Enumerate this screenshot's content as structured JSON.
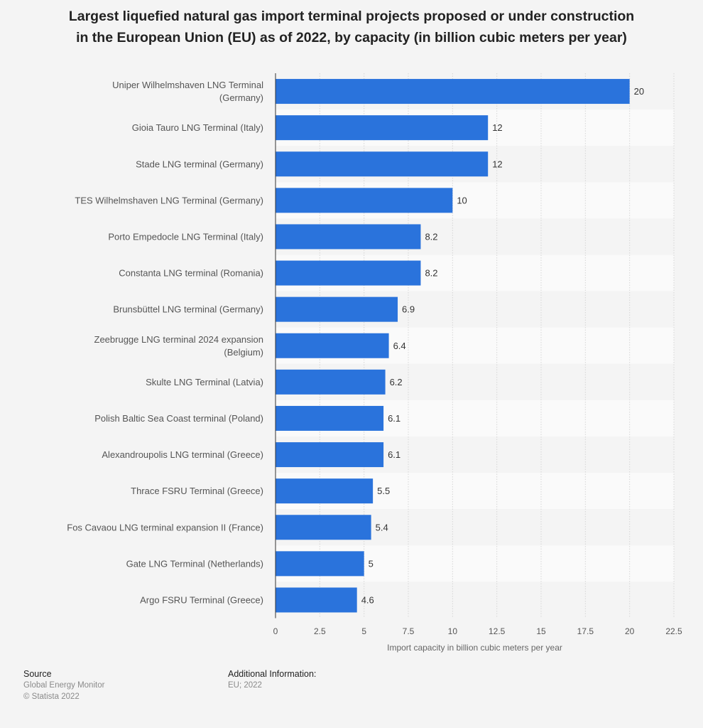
{
  "title": {
    "line1": "Largest liquefied natural gas import terminal projects proposed or under construction",
    "line2": "in the European Union (EU) as of 2022, by capacity (in billion cubic meters per year)"
  },
  "chart_data": {
    "type": "bar",
    "orientation": "horizontal",
    "categories": [
      "Uniper Wilhelmshaven LNG Terminal (Germany)",
      "Gioia Tauro LNG Terminal (Italy)",
      "Stade LNG terminal (Germany)",
      "TES Wilhelmshaven LNG Terminal (Germany)",
      "Porto Empedocle LNG Terminal (Italy)",
      "Constanta LNG terminal (Romania)",
      "Brunsbüttel LNG terminal (Germany)",
      "Zeebrugge LNG terminal 2024 expansion (Belgium)",
      "Skulte LNG Terminal (Latvia)",
      "Polish Baltic Sea Coast terminal (Poland)",
      "Alexandroupolis LNG terminal (Greece)",
      "Thrace FSRU Terminal (Greece)",
      "Fos Cavaou LNG terminal expansion II (France)",
      "Gate LNG Terminal (Netherlands)",
      "Argo FSRU Terminal (Greece)"
    ],
    "category_lines": [
      [
        "Uniper Wilhelmshaven LNG Terminal",
        "(Germany)"
      ],
      [
        "Gioia Tauro LNG Terminal (Italy)"
      ],
      [
        "Stade LNG terminal (Germany)"
      ],
      [
        "TES Wilhelmshaven LNG Terminal (Germany)"
      ],
      [
        "Porto Empedocle LNG Terminal (Italy)"
      ],
      [
        "Constanta LNG terminal (Romania)"
      ],
      [
        "Brunsbüttel LNG terminal (Germany)"
      ],
      [
        "Zeebrugge LNG terminal 2024 expansion",
        "(Belgium)"
      ],
      [
        "Skulte LNG Terminal (Latvia)"
      ],
      [
        "Polish Baltic Sea Coast terminal (Poland)"
      ],
      [
        "Alexandroupolis LNG terminal (Greece)"
      ],
      [
        "Thrace FSRU Terminal (Greece)"
      ],
      [
        "Fos Cavaou LNG terminal expansion II (France)"
      ],
      [
        "Gate LNG Terminal (Netherlands)"
      ],
      [
        "Argo FSRU Terminal (Greece)"
      ]
    ],
    "values": [
      20,
      12,
      12,
      10,
      8.2,
      8.2,
      6.9,
      6.4,
      6.2,
      6.1,
      6.1,
      5.5,
      5.4,
      5,
      4.6
    ],
    "value_labels": [
      "20",
      "12",
      "12",
      "10",
      "8.2",
      "8.2",
      "6.9",
      "6.4",
      "6.2",
      "6.1",
      "6.1",
      "5.5",
      "5.4",
      "5",
      "4.6"
    ],
    "xlim": [
      0,
      22.5
    ],
    "xticks": [
      0,
      2.5,
      5,
      7.5,
      10,
      12.5,
      15,
      17.5,
      20,
      22.5
    ],
    "xtick_labels": [
      "0",
      "2.5",
      "5",
      "7.5",
      "10",
      "12.5",
      "15",
      "17.5",
      "20",
      "22.5"
    ],
    "xlabel": "Import capacity in billion cubic meters per year",
    "ylabel": "",
    "grid": true,
    "bar_color": "#2a73dc"
  },
  "footer": {
    "source_heading": "Source",
    "source_line1": "Global Energy Monitor",
    "source_line2": "© Statista 2022",
    "info_heading": "Additional Information:",
    "info_line1": "EU; 2022"
  }
}
